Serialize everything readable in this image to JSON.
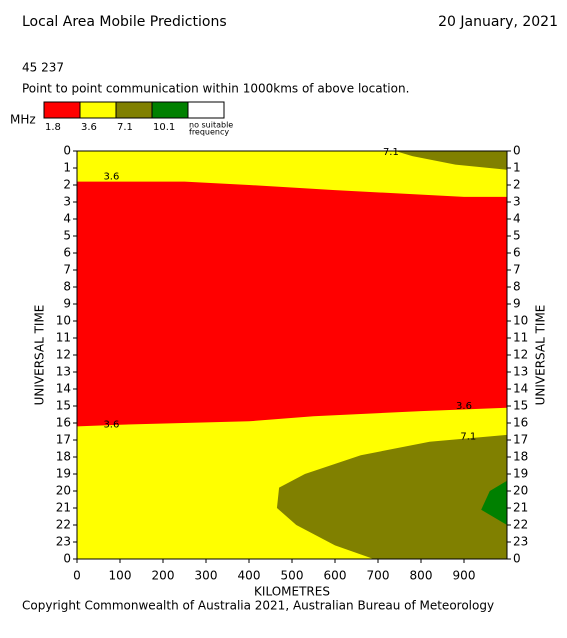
{
  "chart_data": {
    "type": "contour",
    "title": "Local Area Mobile Predictions",
    "date": "20 January, 2021",
    "location": "45 237",
    "subtitle": "Point to point communication within 1000kms of above location.",
    "legend_unit": "MHz",
    "legend": [
      {
        "label": "1.8",
        "color": "#ff0000"
      },
      {
        "label": "3.6",
        "color": "#ffff00"
      },
      {
        "label": "7.1",
        "color": "#808000"
      },
      {
        "label": "10.1",
        "color": "#008000"
      },
      {
        "label": [
          "no suitable",
          "frequency"
        ],
        "color": "#ffffff"
      }
    ],
    "x_label": "KILOMETRES",
    "y_label": "UNIVERSAL TIME",
    "footer": "Copyright Commonwealth of Australia 2021, Australian Bureau of Meteorology",
    "xlim": [
      0,
      1000
    ],
    "ylim": [
      0,
      24
    ],
    "y_inverted": true,
    "xticks": [
      0,
      100,
      200,
      300,
      400,
      500,
      600,
      700,
      800,
      900
    ],
    "yticks": [
      0,
      1,
      2,
      3,
      4,
      5,
      6,
      7,
      8,
      9,
      10,
      11,
      12,
      13,
      14,
      15,
      16,
      17,
      18,
      19,
      20,
      21,
      22,
      23,
      {
        "value": 24,
        "label": "0"
      }
    ],
    "background_color": "#ffff00",
    "regions": [
      {
        "color": "#ff0000",
        "points": [
          [
            0,
            1.8
          ],
          [
            250,
            1.8
          ],
          [
            400,
            2.0
          ],
          [
            600,
            2.3
          ],
          [
            900,
            2.7
          ],
          [
            1000,
            2.7
          ],
          [
            1000,
            15.1
          ],
          [
            800,
            15.3
          ],
          [
            550,
            15.6
          ],
          [
            400,
            15.9
          ],
          [
            100,
            16.1
          ],
          [
            0,
            16.2
          ]
        ]
      },
      {
        "color": "#808000",
        "points": [
          [
            740,
            0
          ],
          [
            1000,
            0
          ],
          [
            1000,
            1.1
          ],
          [
            880,
            0.8
          ],
          [
            780,
            0.3
          ]
        ]
      },
      {
        "color": "#808000",
        "points": [
          [
            1000,
            16.7
          ],
          [
            820,
            17.1
          ],
          [
            660,
            17.9
          ],
          [
            530,
            19.0
          ],
          [
            470,
            19.8
          ],
          [
            465,
            21.0
          ],
          [
            510,
            22.0
          ],
          [
            600,
            23.2
          ],
          [
            690,
            24
          ],
          [
            1000,
            24
          ]
        ]
      },
      {
        "color": "#008000",
        "points": [
          [
            1000,
            19.4
          ],
          [
            960,
            20.0
          ],
          [
            940,
            21.1
          ],
          [
            1000,
            22.0
          ]
        ]
      }
    ],
    "contour_labels": [
      {
        "text": "3.6",
        "x": 80,
        "y": 1.5
      },
      {
        "text": "3.6",
        "x": 80,
        "y": 16.1
      },
      {
        "text": "3.6",
        "x": 900,
        "y": 15.0
      },
      {
        "text": "7.1",
        "x": 730,
        "y": 0.05
      },
      {
        "text": "7.1",
        "x": 910,
        "y": 16.8
      }
    ]
  }
}
